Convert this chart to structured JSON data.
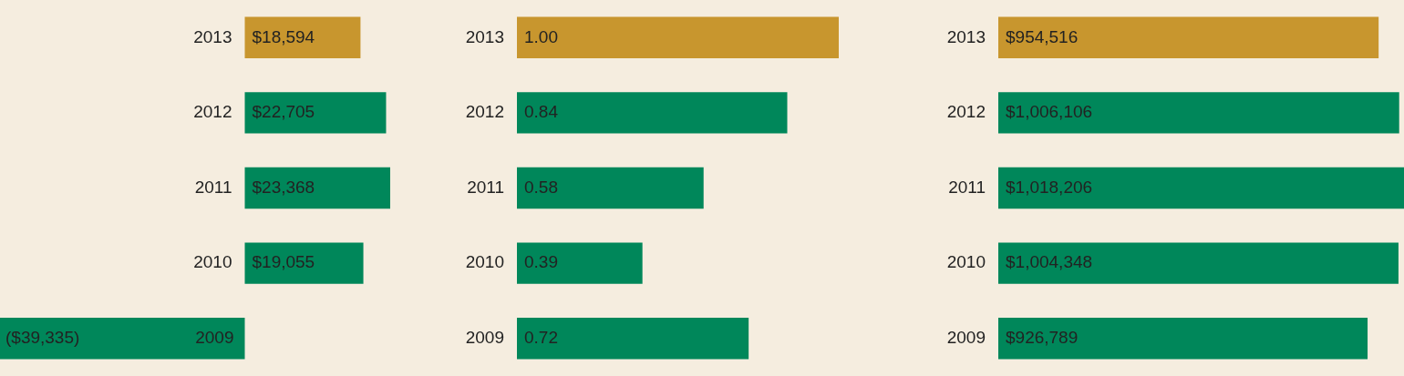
{
  "chart_data": [
    {
      "type": "bar",
      "orientation": "horizontal",
      "categories": [
        "2013",
        "2012",
        "2011",
        "2010",
        "2009"
      ],
      "values": [
        18594,
        22705,
        23368,
        19055,
        -39335
      ],
      "colors": [
        "#c8962e",
        "#00875a",
        "#00875a",
        "#00875a",
        "#00875a"
      ],
      "value_labels": [
        "$18,594",
        "$22,705",
        "$23,368",
        "$19,055",
        "($39,335)"
      ],
      "legend": false
    },
    {
      "type": "bar",
      "orientation": "horizontal",
      "categories": [
        "2013",
        "2012",
        "2011",
        "2010",
        "2009"
      ],
      "values": [
        1.0,
        0.84,
        0.58,
        0.39,
        0.72
      ],
      "colors": [
        "#c8962e",
        "#00875a",
        "#00875a",
        "#00875a",
        "#00875a"
      ],
      "value_labels": [
        "1.00",
        "0.84",
        "0.58",
        "0.39",
        "0.72"
      ],
      "legend": false
    },
    {
      "type": "bar",
      "orientation": "horizontal",
      "categories": [
        "2013",
        "2012",
        "2011",
        "2010",
        "2009"
      ],
      "values": [
        954516,
        1006106,
        1018206,
        1004348,
        926789
      ],
      "colors": [
        "#c8962e",
        "#00875a",
        "#00875a",
        "#00875a",
        "#00875a"
      ],
      "value_labels": [
        "$954,516",
        "$1,006,106",
        "$1,018,206",
        "$1,004,348",
        "$926,789"
      ],
      "legend": false
    }
  ]
}
